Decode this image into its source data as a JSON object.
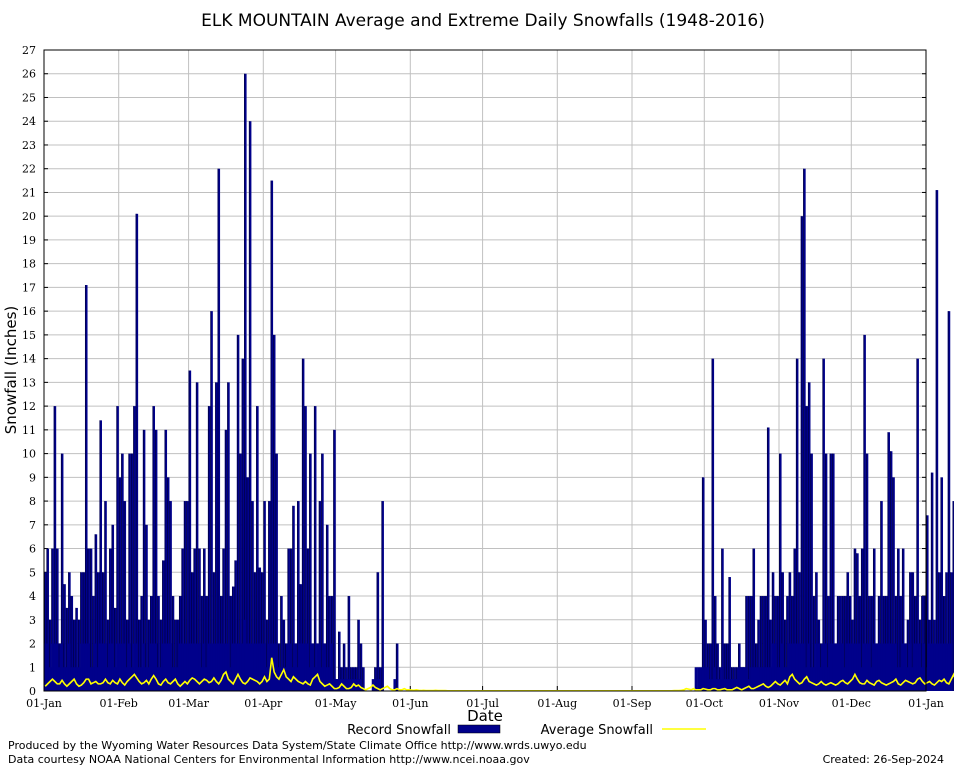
{
  "chart_data": {
    "type": "bar",
    "title": "ELK MOUNTAIN Average and Extreme Daily Snowfalls (1948-2016)",
    "xlabel": "Date",
    "ylabel": "Snowfall (Inches)",
    "ylim": [
      0,
      27
    ],
    "yticks": [
      0,
      1,
      2,
      3,
      4,
      5,
      6,
      7,
      8,
      9,
      10,
      11,
      12,
      13,
      14,
      15,
      16,
      17,
      18,
      19,
      20,
      21,
      22,
      23,
      24,
      25,
      26,
      27
    ],
    "xticks": [
      "01-Jan",
      "01-Feb",
      "01-Mar",
      "01-Apr",
      "01-May",
      "01-Jun",
      "01-Jul",
      "01-Aug",
      "01-Sep",
      "01-Oct",
      "01-Nov",
      "01-Dec",
      "01-Jan"
    ],
    "grid": true,
    "legend": "bottom",
    "colors": {
      "record": "#00008b",
      "average": "#ffff00",
      "grid": "#c0c0c0"
    },
    "days_in_year": 366,
    "series": [
      {
        "name": "Record Snowfall",
        "kind": "bar",
        "values": [
          5,
          6,
          3,
          6,
          12,
          6,
          2,
          10,
          4.5,
          3.5,
          5,
          4,
          3,
          3.5,
          3,
          5,
          5,
          17.1,
          6,
          6,
          4,
          6.6,
          5,
          11.4,
          5,
          8,
          3,
          6,
          7,
          3.5,
          12,
          9,
          10,
          8,
          3,
          10,
          10,
          12,
          20.1,
          3,
          4,
          11,
          7,
          3,
          4,
          12,
          11,
          4,
          3,
          5.5,
          11,
          9,
          8,
          4,
          3,
          3,
          4,
          6,
          8,
          8,
          13.5,
          5,
          6,
          13,
          6,
          4,
          6,
          4,
          12,
          16,
          5,
          13,
          22,
          4,
          6,
          11,
          13,
          4,
          4.4,
          5.5,
          15,
          10,
          14,
          26,
          9,
          24,
          8,
          5,
          12,
          5.2,
          5,
          8,
          3,
          8,
          21.5,
          15,
          10,
          2,
          4,
          3,
          2,
          6,
          6,
          7.8,
          2,
          8,
          4.5,
          14,
          12,
          6,
          10,
          2,
          12,
          2,
          8,
          10,
          2,
          7,
          4,
          4,
          11,
          0.5,
          2.5,
          1,
          2,
          1,
          4,
          1,
          1,
          1,
          3,
          2,
          1,
          0,
          0,
          0,
          0,
          1,
          5,
          1,
          8,
          0,
          0,
          0,
          0,
          0,
          2,
          0,
          0,
          0,
          0,
          0,
          0,
          0,
          0,
          0,
          0,
          0,
          0,
          0,
          0,
          0,
          0,
          0,
          0,
          0,
          0,
          0,
          0,
          0,
          0,
          0,
          0,
          0,
          0,
          0,
          0,
          0,
          0,
          0,
          0,
          0,
          0,
          0,
          0,
          0,
          0,
          0,
          0,
          0,
          0,
          0,
          0,
          0,
          0,
          0,
          0,
          0,
          0,
          0,
          0,
          0,
          0,
          0,
          0,
          0,
          0,
          0,
          0,
          0,
          0,
          0,
          0,
          0,
          0,
          0,
          0,
          0,
          0,
          0,
          0,
          0,
          0,
          0,
          0,
          0,
          0,
          0,
          0,
          0,
          0,
          0,
          0,
          0,
          0,
          0,
          0,
          0,
          0,
          0,
          0,
          0,
          0,
          0,
          0,
          0,
          0,
          0,
          0,
          0,
          0,
          0,
          0,
          0,
          0,
          0,
          0,
          0,
          0,
          0,
          0,
          0,
          0,
          0,
          0,
          0,
          0,
          0,
          0,
          0,
          0,
          0,
          0,
          9,
          3,
          2,
          2,
          14,
          4,
          2,
          1,
          6,
          2,
          2,
          4.8,
          1,
          1,
          1,
          2,
          1,
          1,
          4,
          4,
          4,
          6,
          2,
          3,
          4,
          4,
          4,
          11.1,
          3,
          5,
          4,
          4,
          10,
          5,
          3,
          4,
          5,
          4,
          6,
          14,
          5,
          20,
          22,
          12,
          13,
          10,
          4,
          5,
          3,
          2,
          14,
          10,
          4,
          10,
          10,
          2,
          4,
          4,
          4,
          4,
          5,
          4,
          3,
          6,
          5.8,
          4,
          6,
          15,
          10,
          4,
          4,
          6,
          2,
          4,
          8,
          4,
          4,
          10.9,
          10.1,
          9,
          4,
          6,
          4,
          6,
          2,
          3,
          5,
          5,
          4,
          14,
          3,
          4,
          4,
          7.4,
          3,
          9.2,
          3,
          21.1,
          5,
          9,
          4,
          5,
          16,
          5,
          8,
          6,
          5
        ],
        "base_values": [
          2,
          2,
          1,
          2,
          2,
          2,
          1,
          2,
          1,
          1,
          2,
          1,
          1,
          1,
          1,
          2,
          2,
          2,
          2,
          1,
          1,
          2,
          1,
          2,
          2,
          2,
          1,
          2,
          2,
          1,
          2,
          2,
          2,
          2,
          1,
          2,
          1,
          2,
          2,
          1,
          1,
          2,
          1,
          1,
          2,
          2,
          2,
          1,
          1,
          2,
          2,
          2,
          2,
          1,
          1,
          1,
          2,
          2,
          2,
          2,
          2,
          2,
          2,
          2,
          2,
          1,
          2,
          1,
          2,
          2,
          2,
          2,
          2,
          2,
          2,
          2,
          2,
          1,
          2,
          2,
          2,
          2,
          2,
          3,
          2,
          2,
          2,
          2,
          2,
          2,
          2,
          2,
          1,
          2,
          2,
          2,
          2,
          1,
          1,
          1,
          1,
          2,
          2,
          1,
          2,
          1,
          2,
          2,
          2,
          2,
          1,
          2,
          1,
          2,
          2,
          1,
          2,
          1,
          1,
          2,
          0.5,
          0.5,
          0.5,
          0.5,
          0.5,
          0.5,
          0.5,
          0.5,
          0.5,
          0.5,
          0.5,
          0.5,
          0,
          0,
          0,
          0,
          0.5,
          0.5,
          0.5,
          0.5,
          0,
          0,
          0,
          0,
          0,
          0.5,
          0,
          0,
          0,
          0,
          0,
          0,
          0,
          0,
          0,
          0,
          0,
          0,
          0,
          0,
          0,
          0,
          0,
          0,
          0,
          0,
          0,
          0,
          0,
          0,
          0,
          0,
          0,
          0,
          0,
          0,
          0,
          0,
          0,
          0,
          0,
          0,
          0,
          0,
          0,
          0,
          0,
          0,
          0,
          0,
          0,
          0,
          0,
          0,
          0,
          0,
          0,
          0,
          0,
          0,
          0,
          0,
          0,
          0,
          0,
          0,
          0,
          0,
          0,
          0,
          0,
          0,
          0,
          0,
          0,
          0,
          0,
          0,
          0,
          0,
          0,
          0,
          0,
          0,
          0,
          0,
          0,
          0,
          0,
          0,
          0,
          0,
          0,
          0,
          0,
          0,
          0,
          0,
          0,
          0,
          0,
          0,
          0,
          0,
          0,
          0,
          0,
          0,
          0,
          0,
          0,
          0,
          0,
          0,
          0,
          0,
          0,
          0,
          0,
          0,
          0,
          0,
          0,
          0,
          0,
          0,
          0,
          0,
          0,
          0,
          1,
          1,
          1,
          1,
          1,
          1,
          0.5,
          0.5,
          1,
          0.5,
          0.5,
          1,
          0.5,
          0.5,
          0.5,
          0.5,
          0.5,
          0.5,
          1,
          1,
          1,
          1,
          0.5,
          1,
          1,
          1,
          1,
          1,
          1,
          1,
          1,
          1,
          2,
          2,
          1,
          1,
          2,
          1,
          1,
          2,
          2,
          2,
          2,
          2,
          2,
          2,
          1,
          2,
          1,
          1,
          2,
          2,
          1,
          2,
          2,
          1,
          2,
          2,
          2,
          2,
          2,
          2,
          1,
          2,
          2,
          2,
          2,
          2,
          2,
          1,
          2,
          2,
          2,
          1,
          2,
          2,
          2,
          2,
          2,
          2,
          2,
          2,
          2,
          2,
          1,
          1,
          2,
          2,
          1,
          2,
          1,
          2,
          2,
          2,
          1,
          2,
          1,
          2,
          2,
          2,
          2,
          2,
          2,
          2,
          2,
          2,
          2
        ]
      },
      {
        "name": "Average Snowfall",
        "kind": "line",
        "values": [
          0.2,
          0.3,
          0.4,
          0.5,
          0.4,
          0.3,
          0.3,
          0.45,
          0.3,
          0.2,
          0.3,
          0.4,
          0.5,
          0.3,
          0.2,
          0.25,
          0.35,
          0.5,
          0.5,
          0.3,
          0.35,
          0.4,
          0.3,
          0.3,
          0.35,
          0.5,
          0.35,
          0.3,
          0.45,
          0.35,
          0.3,
          0.5,
          0.35,
          0.25,
          0.4,
          0.5,
          0.6,
          0.7,
          0.55,
          0.4,
          0.3,
          0.35,
          0.45,
          0.3,
          0.5,
          0.65,
          0.5,
          0.3,
          0.25,
          0.4,
          0.5,
          0.35,
          0.3,
          0.4,
          0.5,
          0.3,
          0.2,
          0.3,
          0.4,
          0.3,
          0.45,
          0.55,
          0.5,
          0.4,
          0.3,
          0.4,
          0.5,
          0.45,
          0.35,
          0.4,
          0.55,
          0.4,
          0.3,
          0.45,
          0.7,
          0.8,
          0.5,
          0.4,
          0.3,
          0.5,
          0.7,
          0.5,
          0.35,
          0.3,
          0.4,
          0.55,
          0.5,
          0.45,
          0.4,
          0.3,
          0.4,
          0.6,
          0.4,
          0.5,
          1.4,
          0.8,
          0.6,
          0.5,
          0.7,
          0.9,
          0.6,
          0.5,
          0.4,
          0.6,
          0.5,
          0.4,
          0.35,
          0.3,
          0.4,
          0.3,
          0.25,
          0.5,
          0.6,
          0.7,
          0.4,
          0.3,
          0.2,
          0.25,
          0.3,
          0.2,
          0.1,
          0.1,
          0.15,
          0.3,
          0.2,
          0.1,
          0.1,
          0.15,
          0.3,
          0.2,
          0.25,
          0.15,
          0.1,
          0.05,
          0.1,
          0.15,
          0.25,
          0.15,
          0.1,
          0.05,
          0.1,
          0.15,
          0.2,
          0.1,
          0.05,
          0.05,
          0.1,
          0.05,
          0.05,
          0.1,
          0.05,
          0.05,
          0.04,
          0.03,
          0.05,
          0.03,
          0.02,
          0.03,
          0.02,
          0.02,
          0.02,
          0.02,
          0.03,
          0.02,
          0.02,
          0.02,
          0.02,
          0.01,
          0.01,
          0.01,
          0.01,
          0.01,
          0.01,
          0.01,
          0.01,
          0.01,
          0.01,
          0.01,
          0.01,
          0.01,
          0.01,
          0.01,
          0.01,
          0.01,
          0.01,
          0.01,
          0.01,
          0.01,
          0.01,
          0.01,
          0.01,
          0.01,
          0.01,
          0.01,
          0.01,
          0.01,
          0.01,
          0.01,
          0.01,
          0.01,
          0.01,
          0.01,
          0.01,
          0.01,
          0.01,
          0.01,
          0.01,
          0.01,
          0.01,
          0.01,
          0.01,
          0.01,
          0.01,
          0.01,
          0.01,
          0.01,
          0.01,
          0.01,
          0.01,
          0.01,
          0.01,
          0.01,
          0.01,
          0.01,
          0.01,
          0.01,
          0.01,
          0.01,
          0.01,
          0.01,
          0.01,
          0.01,
          0.01,
          0.01,
          0.01,
          0.01,
          0.01,
          0.01,
          0.01,
          0.01,
          0.01,
          0.01,
          0.01,
          0.01,
          0.01,
          0.01,
          0.01,
          0.01,
          0.01,
          0.01,
          0.01,
          0.01,
          0.01,
          0.01,
          0.01,
          0.01,
          0.01,
          0.01,
          0.01,
          0.01,
          0.01,
          0.02,
          0.02,
          0.02,
          0.03,
          0.05,
          0.1,
          0.08,
          0.05,
          0.1,
          0.05,
          0.05,
          0.05,
          0.1,
          0.08,
          0.05,
          0.05,
          0.1,
          0.1,
          0.05,
          0.05,
          0.08,
          0.1,
          0.05,
          0.05,
          0.05,
          0.1,
          0.15,
          0.1,
          0.05,
          0.1,
          0.15,
          0.2,
          0.1,
          0.1,
          0.15,
          0.2,
          0.25,
          0.3,
          0.2,
          0.15,
          0.2,
          0.3,
          0.4,
          0.3,
          0.25,
          0.35,
          0.45,
          0.3,
          0.6,
          0.7,
          0.5,
          0.4,
          0.3,
          0.35,
          0.5,
          0.6,
          0.4,
          0.35,
          0.3,
          0.25,
          0.3,
          0.4,
          0.3,
          0.25,
          0.3,
          0.35,
          0.3,
          0.25,
          0.3,
          0.4,
          0.45,
          0.35,
          0.3,
          0.4,
          0.5,
          0.7,
          0.5,
          0.35,
          0.3,
          0.3,
          0.45,
          0.35,
          0.3,
          0.25,
          0.4,
          0.45,
          0.35,
          0.3,
          0.25,
          0.3,
          0.35,
          0.4,
          0.5,
          0.3,
          0.25,
          0.35,
          0.45,
          0.4,
          0.35,
          0.3,
          0.35,
          0.5,
          0.55,
          0.4,
          0.3,
          0.35,
          0.4,
          0.3,
          0.25,
          0.35,
          0.45,
          0.4,
          0.5,
          0.35,
          0.3,
          0.5,
          0.7,
          0.4,
          0.3,
          0.3,
          0.35,
          0.3
        ]
      }
    ]
  },
  "footer": {
    "produced_by": "Produced by the Wyoming Water Resources Data System/State Climate Office http://www.wrds.uwyo.edu",
    "data_courtesy": "Data courtesy NOAA National Centers for Environmental Information http://www.ncei.noaa.gov",
    "created": "Created: 26-Sep-2024"
  }
}
